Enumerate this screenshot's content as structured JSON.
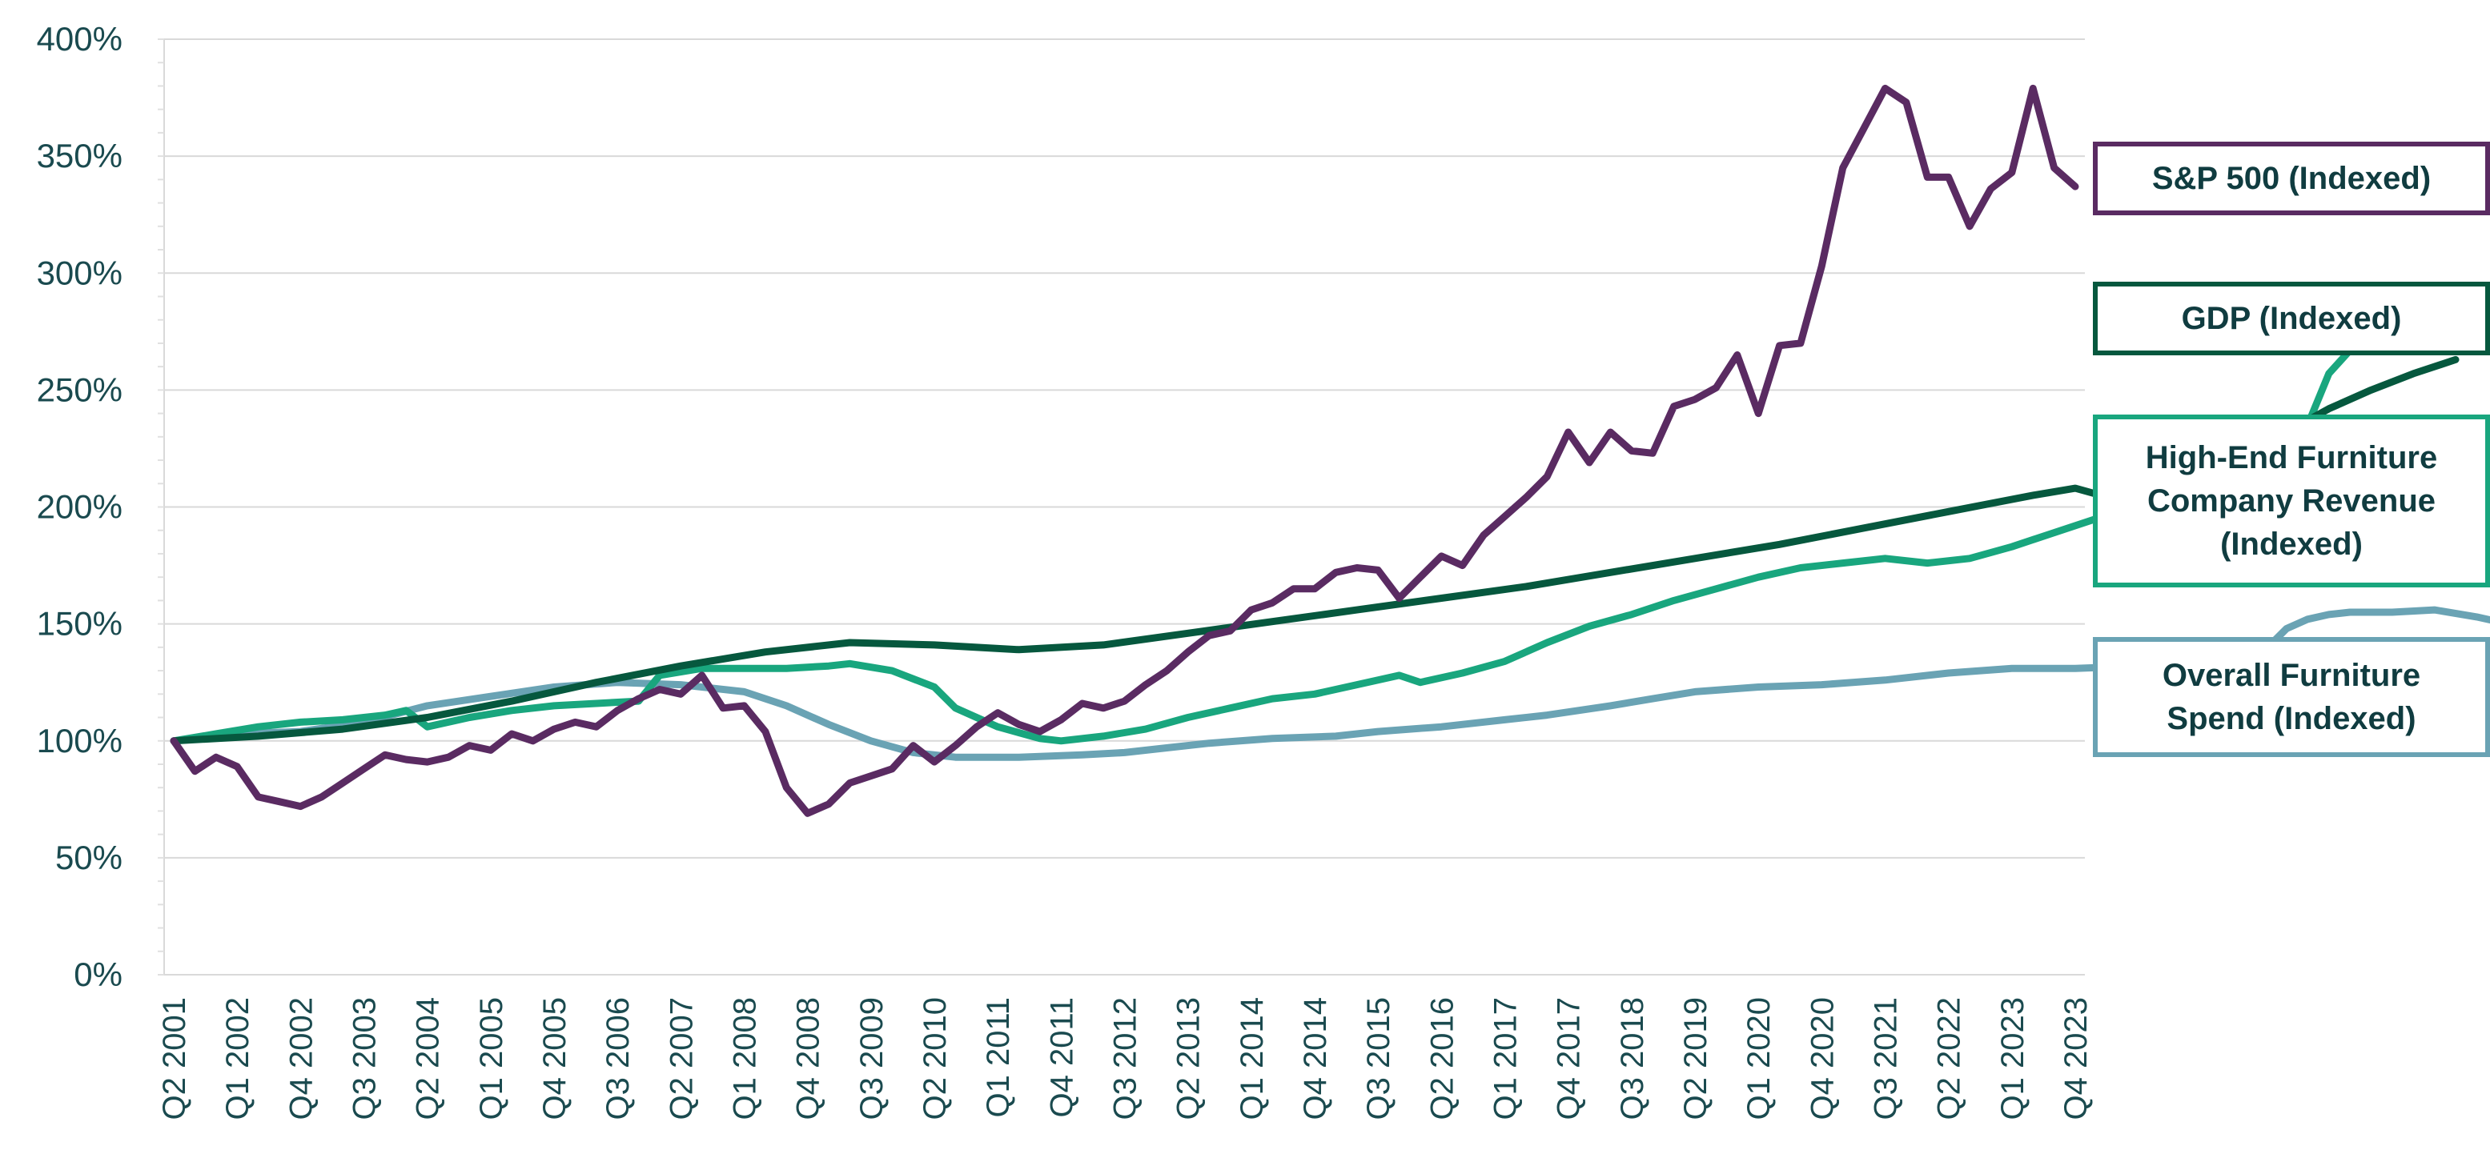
{
  "chart_data": {
    "type": "line",
    "title": "",
    "xlabel": "",
    "ylabel": "",
    "y_axis": {
      "ticks": [
        "0%",
        "50%",
        "100%",
        "150%",
        "200%",
        "250%",
        "300%",
        "350%",
        "400%"
      ],
      "ylim": [
        0,
        400
      ],
      "unit": "%"
    },
    "grid": "horizontal",
    "legend_placement": "right",
    "x_tick_labels": [
      "Q2 2001",
      "Q1 2002",
      "Q4 2002",
      "Q3 2003",
      "Q2 2004",
      "Q1 2005",
      "Q4 2005",
      "Q3 2006",
      "Q2 2007",
      "Q1 2008",
      "Q4 2008",
      "Q3 2009",
      "Q2 2010",
      "Q1 2011",
      "Q4 2011",
      "Q3 2012",
      "Q2 2013",
      "Q1 2014",
      "Q4 2014",
      "Q3 2015",
      "Q2 2016",
      "Q1 2017",
      "Q4 2017",
      "Q3 2018",
      "Q2 2019",
      "Q1 2020",
      "Q4 2020",
      "Q3 2021",
      "Q2 2022",
      "Q1 2023",
      "Q4 2023"
    ],
    "x_range": [
      "Q2 2001",
      "Q4 2023"
    ],
    "series": [
      {
        "key": "overall",
        "name": "Overall Furniture\nSpend (Indexed)",
        "color": "#6aa3b4",
        "points": [
          [
            0,
            100
          ],
          [
            3,
            103
          ],
          [
            6,
            104
          ],
          [
            9,
            108
          ],
          [
            12,
            115
          ],
          [
            15,
            119
          ],
          [
            18,
            123
          ],
          [
            21,
            125
          ],
          [
            24,
            124
          ],
          [
            27,
            121
          ],
          [
            29,
            115
          ],
          [
            31,
            107
          ],
          [
            33,
            100
          ],
          [
            35,
            95
          ],
          [
            37,
            93
          ],
          [
            40,
            93
          ],
          [
            43,
            94
          ],
          [
            45,
            95
          ],
          [
            47,
            97
          ],
          [
            49,
            99
          ],
          [
            52,
            101
          ],
          [
            55,
            102
          ],
          [
            57,
            104
          ],
          [
            60,
            106
          ],
          [
            63,
            109
          ],
          [
            65,
            111
          ],
          [
            68,
            115
          ],
          [
            70,
            118
          ],
          [
            72,
            121
          ],
          [
            75,
            123
          ],
          [
            78,
            124
          ],
          [
            81,
            126
          ],
          [
            84,
            129
          ],
          [
            87,
            131
          ],
          [
            90,
            131
          ],
          [
            93,
            132
          ],
          [
            94,
            133
          ],
          [
            95,
            126
          ],
          [
            96,
            122
          ],
          [
            97,
            124
          ],
          [
            98,
            126
          ],
          [
            99,
            139
          ],
          [
            100,
            148
          ],
          [
            101,
            152
          ],
          [
            102,
            154
          ],
          [
            103,
            155
          ],
          [
            105,
            155
          ],
          [
            107,
            156
          ],
          [
            109,
            153
          ],
          [
            110,
            151
          ],
          [
            111,
            149
          ],
          [
            112,
            146
          ]
        ]
      },
      {
        "key": "highend",
        "name": "High-End Furniture\nCompany Revenue\n(Indexed)",
        "color": "#19a67e",
        "points": [
          [
            0,
            100
          ],
          [
            2,
            103
          ],
          [
            4,
            106
          ],
          [
            6,
            108
          ],
          [
            8,
            109
          ],
          [
            10,
            111
          ],
          [
            11,
            113
          ],
          [
            12,
            106
          ],
          [
            14,
            110
          ],
          [
            16,
            113
          ],
          [
            18,
            115
          ],
          [
            20,
            116
          ],
          [
            22,
            117
          ],
          [
            23,
            128
          ],
          [
            25,
            131
          ],
          [
            27,
            131
          ],
          [
            29,
            131
          ],
          [
            31,
            132
          ],
          [
            32,
            133
          ],
          [
            34,
            130
          ],
          [
            36,
            123
          ],
          [
            37,
            114
          ],
          [
            39,
            106
          ],
          [
            41,
            101
          ],
          [
            42,
            100
          ],
          [
            44,
            102
          ],
          [
            46,
            105
          ],
          [
            48,
            110
          ],
          [
            50,
            114
          ],
          [
            52,
            118
          ],
          [
            54,
            120
          ],
          [
            56,
            124
          ],
          [
            58,
            128
          ],
          [
            59,
            125
          ],
          [
            61,
            129
          ],
          [
            63,
            134
          ],
          [
            65,
            142
          ],
          [
            67,
            149
          ],
          [
            69,
            154
          ],
          [
            71,
            160
          ],
          [
            73,
            165
          ],
          [
            75,
            170
          ],
          [
            77,
            174
          ],
          [
            79,
            176
          ],
          [
            81,
            178
          ],
          [
            83,
            176
          ],
          [
            85,
            178
          ],
          [
            87,
            183
          ],
          [
            89,
            189
          ],
          [
            91,
            195
          ],
          [
            93,
            203
          ],
          [
            95,
            205
          ],
          [
            96,
            201
          ],
          [
            97,
            199
          ],
          [
            98,
            206
          ],
          [
            100,
            218
          ],
          [
            101,
            235
          ],
          [
            102,
            257
          ],
          [
            103,
            267
          ],
          [
            105,
            280
          ],
          [
            106,
            287
          ],
          [
            107,
            290
          ],
          [
            108,
            291
          ],
          [
            109,
            288
          ],
          [
            110,
            279
          ],
          [
            111,
            267
          ],
          [
            112,
            257
          ],
          [
            113,
            250
          ]
        ]
      },
      {
        "key": "gdp",
        "name": "GDP (Indexed)",
        "color": "#06583e",
        "points": [
          [
            0,
            100
          ],
          [
            4,
            102
          ],
          [
            8,
            105
          ],
          [
            12,
            110
          ],
          [
            16,
            117
          ],
          [
            20,
            125
          ],
          [
            24,
            132
          ],
          [
            28,
            138
          ],
          [
            32,
            142
          ],
          [
            36,
            141
          ],
          [
            40,
            139
          ],
          [
            44,
            141
          ],
          [
            48,
            146
          ],
          [
            52,
            151
          ],
          [
            56,
            156
          ],
          [
            60,
            161
          ],
          [
            64,
            166
          ],
          [
            68,
            172
          ],
          [
            72,
            178
          ],
          [
            76,
            184
          ],
          [
            80,
            191
          ],
          [
            84,
            198
          ],
          [
            88,
            205
          ],
          [
            90,
            208
          ],
          [
            92,
            203
          ],
          [
            94,
            204
          ],
          [
            95,
            206
          ],
          [
            96,
            213
          ],
          [
            98,
            222
          ],
          [
            100,
            232
          ],
          [
            102,
            242
          ],
          [
            104,
            250
          ],
          [
            106,
            257
          ],
          [
            108,
            263
          ]
        ]
      },
      {
        "key": "sp500",
        "name": "S&P 500 (Indexed)",
        "color": "#5a2b62",
        "points": [
          [
            0,
            100
          ],
          [
            1,
            87
          ],
          [
            2,
            93
          ],
          [
            3,
            89
          ],
          [
            4,
            76
          ],
          [
            5,
            74
          ],
          [
            6,
            72
          ],
          [
            7,
            76
          ],
          [
            8,
            82
          ],
          [
            9,
            88
          ],
          [
            10,
            94
          ],
          [
            11,
            92
          ],
          [
            12,
            91
          ],
          [
            13,
            93
          ],
          [
            14,
            98
          ],
          [
            15,
            96
          ],
          [
            16,
            103
          ],
          [
            17,
            100
          ],
          [
            18,
            105
          ],
          [
            19,
            108
          ],
          [
            20,
            106
          ],
          [
            21,
            113
          ],
          [
            22,
            118
          ],
          [
            23,
            122
          ],
          [
            24,
            120
          ],
          [
            25,
            128
          ],
          [
            26,
            114
          ],
          [
            27,
            115
          ],
          [
            28,
            104
          ],
          [
            29,
            80
          ],
          [
            30,
            69
          ],
          [
            31,
            73
          ],
          [
            32,
            82
          ],
          [
            33,
            85
          ],
          [
            34,
            88
          ],
          [
            35,
            98
          ],
          [
            36,
            91
          ],
          [
            37,
            98
          ],
          [
            38,
            106
          ],
          [
            39,
            112
          ],
          [
            40,
            107
          ],
          [
            41,
            104
          ],
          [
            42,
            109
          ],
          [
            43,
            116
          ],
          [
            44,
            114
          ],
          [
            45,
            117
          ],
          [
            46,
            124
          ],
          [
            47,
            130
          ],
          [
            48,
            138
          ],
          [
            49,
            145
          ],
          [
            50,
            147
          ],
          [
            51,
            156
          ],
          [
            52,
            159
          ],
          [
            53,
            165
          ],
          [
            54,
            165
          ],
          [
            55,
            172
          ],
          [
            56,
            174
          ],
          [
            57,
            173
          ],
          [
            58,
            161
          ],
          [
            59,
            170
          ],
          [
            60,
            179
          ],
          [
            61,
            175
          ],
          [
            62,
            188
          ],
          [
            63,
            196
          ],
          [
            64,
            204
          ],
          [
            65,
            213
          ],
          [
            66,
            232
          ],
          [
            67,
            219
          ],
          [
            68,
            232
          ],
          [
            69,
            224
          ],
          [
            70,
            223
          ],
          [
            71,
            243
          ],
          [
            72,
            246
          ],
          [
            73,
            251
          ],
          [
            74,
            265
          ],
          [
            75,
            240
          ],
          [
            76,
            269
          ],
          [
            77,
            270
          ],
          [
            78,
            303
          ],
          [
            79,
            345
          ],
          [
            80,
            362
          ],
          [
            81,
            379
          ],
          [
            82,
            373
          ],
          [
            83,
            341
          ],
          [
            84,
            341
          ],
          [
            85,
            320
          ],
          [
            86,
            336
          ],
          [
            87,
            343
          ],
          [
            88,
            379
          ],
          [
            89,
            345
          ],
          [
            90,
            337
          ]
        ]
      }
    ]
  },
  "legend": {
    "sp500": "S&P 500 (Indexed)",
    "gdp": "GDP (Indexed)",
    "highend": "High-End Furniture\nCompany Revenue\n(Indexed)",
    "overall": "Overall Furniture\nSpend (Indexed)"
  }
}
